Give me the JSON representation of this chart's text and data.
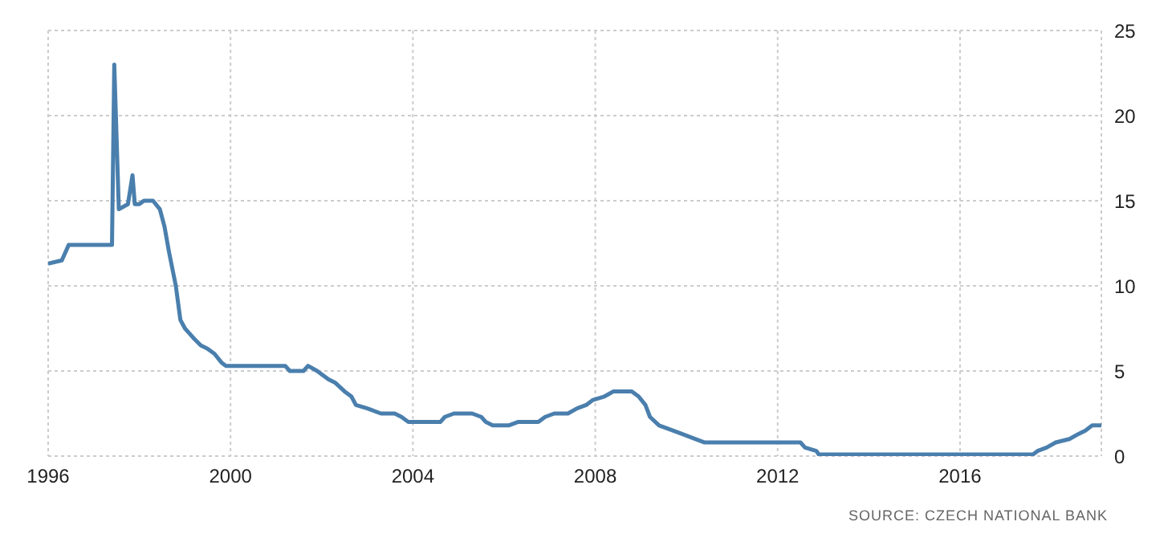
{
  "chart_data": {
    "type": "line",
    "x": [
      1996.0,
      1996.3,
      1996.45,
      1997.4,
      1997.45,
      1997.55,
      1997.75,
      1997.85,
      1997.9,
      1998.0,
      1998.1,
      1998.3,
      1998.45,
      1998.55,
      1998.65,
      1998.8,
      1998.9,
      1999.0,
      1999.1,
      1999.2,
      1999.35,
      1999.5,
      1999.65,
      1999.8,
      1999.9,
      2001.0,
      2001.2,
      2001.3,
      2001.6,
      2001.7,
      2001.9,
      2002.0,
      2002.15,
      2002.3,
      2002.5,
      2002.65,
      2002.75,
      2003.0,
      2003.3,
      2003.6,
      2003.75,
      2003.9,
      2004.6,
      2004.7,
      2004.9,
      2005.3,
      2005.5,
      2005.6,
      2005.75,
      2006.1,
      2006.3,
      2006.75,
      2006.9,
      2007.1,
      2007.4,
      2007.6,
      2007.8,
      2007.95,
      2008.2,
      2008.4,
      2008.8,
      2008.95,
      2009.1,
      2009.2,
      2009.4,
      2009.7,
      2009.9,
      2010.2,
      2010.4,
      2012.5,
      2012.6,
      2012.85,
      2012.9,
      2017.6,
      2017.7,
      2017.9,
      2018.1,
      2018.4,
      2018.6,
      2018.75,
      2018.9,
      2019.1
    ],
    "series": [
      {
        "color": "#4a7fad",
        "values": [
          11.3,
          11.5,
          12.4,
          12.4,
          23,
          14.5,
          14.8,
          16.5,
          14.8,
          14.8,
          15,
          15,
          14.5,
          13.5,
          12,
          10,
          8,
          7.5,
          7.2,
          6.9,
          6.5,
          6.3,
          6,
          5.5,
          5.3,
          5.3,
          5.3,
          5,
          5,
          5.3,
          5,
          4.8,
          4.5,
          4.3,
          3.8,
          3.5,
          3,
          2.8,
          2.5,
          2.5,
          2.3,
          2,
          2,
          2.3,
          2.5,
          2.5,
          2.3,
          2,
          1.8,
          1.8,
          2,
          2,
          2.3,
          2.5,
          2.5,
          2.8,
          3,
          3.3,
          3.5,
          3.8,
          3.8,
          3.5,
          3,
          2.3,
          1.8,
          1.5,
          1.3,
          1,
          0.8,
          0.8,
          0.5,
          0.3,
          0.1,
          0.1,
          0.3,
          0.5,
          0.8,
          1,
          1.3,
          1.5,
          1.8,
          1.8
        ]
      }
    ],
    "xlim": [
      1996,
      2019.1
    ],
    "xticks": [
      1996,
      2000,
      2004,
      2008,
      2012,
      2016
    ],
    "ylim": [
      0,
      25
    ],
    "yticks": [
      0,
      5,
      10,
      15,
      20,
      25
    ],
    "grid": true,
    "marker": "none",
    "line_style": "solid",
    "annotations": [
      "SOURCE: CZECH NATIONAL BANK"
    ]
  }
}
